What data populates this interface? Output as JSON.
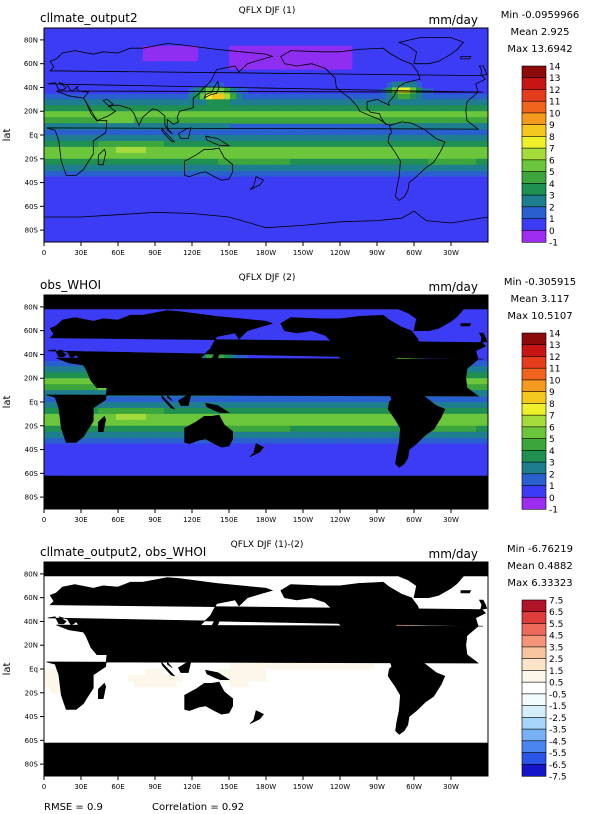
{
  "palettes": {
    "abs": [
      "#9d2cf0",
      "#3c3cf5",
      "#2a5fd0",
      "#1e7d8e",
      "#1f8f52",
      "#3ca53c",
      "#6cc63c",
      "#a5dc3c",
      "#f0f02a",
      "#f5c81e",
      "#f59a1e",
      "#f0641e",
      "#e63c1e",
      "#c81414",
      "#8c0a0a"
    ],
    "diff": [
      "#1414c8",
      "#2a55e6",
      "#4a86f0",
      "#78b2f5",
      "#a8d6fa",
      "#d6eefa",
      "#f2fbfd",
      "#ffffff",
      "#fdf6ea",
      "#fce4c8",
      "#f9c4a0",
      "#f5967a",
      "#ee6a5a",
      "#e03c3c",
      "#b01428"
    ],
    "land": "#000000",
    "coast": "#000000"
  },
  "stats_labels": {
    "min": "Min",
    "mean": "Mean",
    "max": "Max"
  },
  "footer": {
    "rmse": "RMSE = 0.9",
    "correlation": "Correlation = 0.92"
  },
  "chart_data": [
    {
      "type": "heatmap",
      "map_style": "model",
      "left_title": "cllmate_output2",
      "center_title": "QFLX DJF (1)",
      "units": "mm/day",
      "stats": {
        "min": "-0.0959966",
        "mean": "2.925",
        "max": "13.6942"
      },
      "ylabel": "lat",
      "x_ticks": [
        "0",
        "30E",
        "60E",
        "90E",
        "120E",
        "150E",
        "180W",
        "150W",
        "120W",
        "90W",
        "60W",
        "30W"
      ],
      "y_ticks": [
        "80N",
        "60N",
        "40N",
        "20N",
        "Eq",
        "20S",
        "40S",
        "60S",
        "80S"
      ],
      "xlim": [
        0,
        360
      ],
      "ylim": [
        -90,
        90
      ],
      "colorbar": [
        "14",
        "13",
        "12",
        "11",
        "10",
        "9",
        "8",
        "7",
        "6",
        "5",
        "4",
        "3",
        "2",
        "1",
        "0",
        "-1"
      ],
      "palette": "abs",
      "vrange": [
        -1,
        14
      ]
    },
    {
      "type": "heatmap",
      "map_style": "obs",
      "left_title": "obs_WHOI",
      "center_title": "QFLX DJF (2)",
      "units": "mm/day",
      "stats": {
        "min": "-0.305915",
        "mean": "3.117",
        "max": "10.5107"
      },
      "ylabel": "lat",
      "x_ticks": [
        "0",
        "30E",
        "60E",
        "90E",
        "120E",
        "150E",
        "180W",
        "150W",
        "120W",
        "90W",
        "60W",
        "30W"
      ],
      "y_ticks": [
        "80N",
        "60N",
        "40N",
        "20N",
        "Eq",
        "20S",
        "40S",
        "60S",
        "80S"
      ],
      "xlim": [
        0,
        360
      ],
      "ylim": [
        -90,
        90
      ],
      "colorbar": [
        "14",
        "13",
        "12",
        "11",
        "10",
        "9",
        "8",
        "7",
        "6",
        "5",
        "4",
        "3",
        "2",
        "1",
        "0",
        "-1"
      ],
      "palette": "abs",
      "vrange": [
        -1,
        14
      ]
    },
    {
      "type": "heatmap",
      "map_style": "diff",
      "left_title": "cllmate_output2, obs_WHOI",
      "center_title": "QFLX DJF (1)-(2)",
      "units": "mm/day",
      "stats": {
        "min": "-6.76219",
        "mean": "0.4882",
        "max": "6.33323"
      },
      "ylabel": "lat",
      "x_ticks": [
        "0",
        "30E",
        "60E",
        "90E",
        "120E",
        "150E",
        "180W",
        "150W",
        "120W",
        "90W",
        "60W",
        "30W"
      ],
      "y_ticks": [
        "80N",
        "60N",
        "40N",
        "20N",
        "Eq",
        "20S",
        "40S",
        "60S",
        "80S"
      ],
      "xlim": [
        0,
        360
      ],
      "ylim": [
        -90,
        90
      ],
      "colorbar": [
        "7.5",
        "6.5",
        "5.5",
        "4.5",
        "3.5",
        "2.5",
        "1.5",
        "0.5",
        "-0.5",
        "-1.5",
        "-2.5",
        "-3.5",
        "-4.5",
        "-5.5",
        "-6.5",
        "-7.5"
      ],
      "palette": "diff",
      "vrange": [
        -7.5,
        7.5
      ]
    }
  ]
}
